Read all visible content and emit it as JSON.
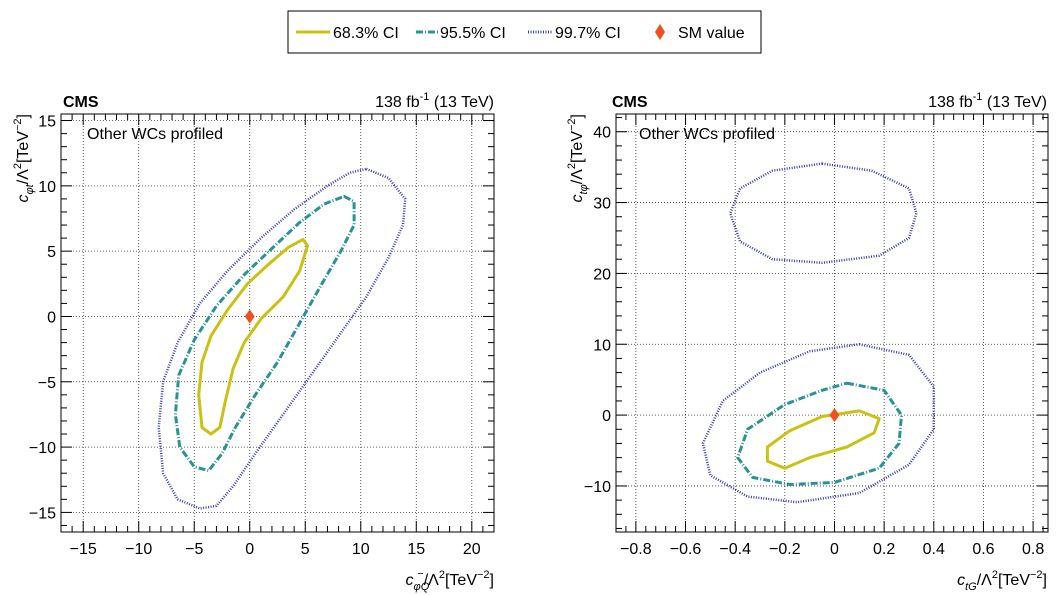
{
  "legend": {
    "entries": [
      {
        "label": "68.3% CI",
        "style": "solid",
        "color": "#c9c215"
      },
      {
        "label": "95.5% CI",
        "style": "dashdot",
        "color": "#2a9295"
      },
      {
        "label": "99.7% CI",
        "style": "dotted",
        "color": "#3a3ab8"
      },
      {
        "label": "SM value",
        "style": "marker-diamond",
        "color": "#f0501e"
      }
    ]
  },
  "chart_data": [
    {
      "type": "contour",
      "experiment": "CMS",
      "lumi_prefix": "138 fb",
      "lumi_exp": "-1",
      "lumi_suffix": " (13 TeV)",
      "annotation": "Other WCs profiled",
      "xlabel": {
        "c": "c",
        "sub": "φQ",
        "sup": "−",
        "rest": "/Λ",
        "rest_sup": "2",
        "unit": "[TeV",
        "unit_sup": "−2",
        "unit_end": "]"
      },
      "ylabel": {
        "c": "c",
        "sub": "φt",
        "rest": "/Λ",
        "rest_sup": "2",
        "unit": "[TeV",
        "unit_sup": "−2",
        "unit_end": "]"
      },
      "xlim": [
        -17,
        22
      ],
      "ylim": [
        -16.5,
        15.5
      ],
      "xticks": [
        -15,
        -10,
        -5,
        0,
        5,
        10,
        15,
        20
      ],
      "yticks": [
        -15,
        -10,
        -5,
        0,
        5,
        10,
        15
      ],
      "grid": true,
      "sm_point": [
        0,
        0
      ],
      "contours": [
        {
          "name": "68.3% CI",
          "points": [
            [
              4.8,
              5.9
            ],
            [
              5.2,
              5.4
            ],
            [
              4.5,
              3.5
            ],
            [
              3,
              1.5
            ],
            [
              1,
              -0.2
            ],
            [
              -0.5,
              -2
            ],
            [
              -1.5,
              -4
            ],
            [
              -2.2,
              -6.5
            ],
            [
              -2.7,
              -8.5
            ],
            [
              -3.5,
              -9
            ],
            [
              -4.3,
              -8.5
            ],
            [
              -4.6,
              -6
            ],
            [
              -4.3,
              -3.5
            ],
            [
              -3.5,
              -1.5
            ],
            [
              -2,
              0.5
            ],
            [
              -0.2,
              2.5
            ],
            [
              1.7,
              4
            ],
            [
              3.5,
              5.3
            ]
          ]
        },
        {
          "name": "95.5% CI",
          "points": [
            [
              8.5,
              9.2
            ],
            [
              9.4,
              8.8
            ],
            [
              9.4,
              7
            ],
            [
              8.2,
              5
            ],
            [
              6.5,
              2.5
            ],
            [
              4.5,
              -0.5
            ],
            [
              2.5,
              -3.5
            ],
            [
              0.5,
              -6
            ],
            [
              -1.3,
              -8.5
            ],
            [
              -2.5,
              -10.5
            ],
            [
              -3.7,
              -11.8
            ],
            [
              -5,
              -11.5
            ],
            [
              -6.3,
              -10
            ],
            [
              -6.7,
              -7.5
            ],
            [
              -6.4,
              -4.5
            ],
            [
              -5,
              -1.8
            ],
            [
              -3,
              0.8
            ],
            [
              -0.5,
              3.2
            ],
            [
              2,
              5.2
            ],
            [
              4.5,
              7.2
            ],
            [
              6.7,
              8.6
            ]
          ]
        },
        {
          "name": "99.7% CI",
          "points": [
            [
              10.5,
              11.3
            ],
            [
              12.5,
              10.6
            ],
            [
              14,
              9
            ],
            [
              13.8,
              7
            ],
            [
              12.5,
              4.5
            ],
            [
              10.5,
              1.5
            ],
            [
              8,
              -1.5
            ],
            [
              5.5,
              -4.5
            ],
            [
              3,
              -7.5
            ],
            [
              0.5,
              -10.5
            ],
            [
              -1.5,
              -13
            ],
            [
              -3,
              -14.5
            ],
            [
              -4.5,
              -14.7
            ],
            [
              -6.5,
              -14
            ],
            [
              -7.8,
              -12
            ],
            [
              -8.2,
              -8.5
            ],
            [
              -7.8,
              -5
            ],
            [
              -6.5,
              -2
            ],
            [
              -4.5,
              1
            ],
            [
              -2,
              3.5
            ],
            [
              1,
              6
            ],
            [
              4,
              8.2
            ],
            [
              7,
              10
            ],
            [
              9,
              11
            ]
          ]
        }
      ]
    },
    {
      "type": "contour",
      "experiment": "CMS",
      "lumi_prefix": "138 fb",
      "lumi_exp": "-1",
      "lumi_suffix": " (13 TeV)",
      "annotation": "Other WCs profiled",
      "xlabel": {
        "c": "c",
        "sub": "tG",
        "sup": "",
        "rest": "/Λ",
        "rest_sup": "2",
        "unit": "[TeV",
        "unit_sup": "−2",
        "unit_end": "]"
      },
      "ylabel": {
        "c": "c",
        "sub": "tφ",
        "rest": "/Λ",
        "rest_sup": "2",
        "unit": "[TeV",
        "unit_sup": "−2",
        "unit_end": "]"
      },
      "xlim": [
        -0.88,
        0.86
      ],
      "ylim": [
        -16.5,
        42.5
      ],
      "xticks": [
        -0.8,
        -0.6,
        -0.4,
        -0.2,
        0,
        0.2,
        0.4,
        0.6,
        0.8
      ],
      "yticks": [
        -10,
        0,
        10,
        20,
        30,
        40
      ],
      "grid": true,
      "sm_point": [
        0,
        0
      ],
      "contours": [
        {
          "name": "68.3% CI",
          "points": [
            [
              -0.05,
              -0.2
            ],
            [
              0.1,
              0.6
            ],
            [
              0.18,
              -0.5
            ],
            [
              0.16,
              -2.5
            ],
            [
              0.05,
              -4.5
            ],
            [
              -0.1,
              -6
            ],
            [
              -0.2,
              -7.5
            ],
            [
              -0.27,
              -6.5
            ],
            [
              -0.27,
              -4.5
            ],
            [
              -0.18,
              -2.2
            ]
          ]
        },
        {
          "name": "95.5% CI",
          "points": [
            [
              0.05,
              4.5
            ],
            [
              0.2,
              3.5
            ],
            [
              0.27,
              0
            ],
            [
              0.26,
              -4
            ],
            [
              0.18,
              -7.5
            ],
            [
              0,
              -9.5
            ],
            [
              -0.18,
              -9.8
            ],
            [
              -0.33,
              -8.8
            ],
            [
              -0.39,
              -6
            ],
            [
              -0.35,
              -2
            ],
            [
              -0.2,
              1.5
            ],
            [
              -0.05,
              3.5
            ]
          ]
        },
        {
          "name": "99.7% CI",
          "points": [
            [
              0.1,
              10
            ],
            [
              0.3,
              8.5
            ],
            [
              0.4,
              4
            ],
            [
              0.4,
              -2
            ],
            [
              0.3,
              -7
            ],
            [
              0.1,
              -11
            ],
            [
              -0.15,
              -12.3
            ],
            [
              -0.35,
              -11.5
            ],
            [
              -0.5,
              -8.5
            ],
            [
              -0.53,
              -4
            ],
            [
              -0.45,
              2
            ],
            [
              -0.3,
              6
            ],
            [
              -0.1,
              9
            ]
          ]
        },
        {
          "name": "99.7% CI",
          "points": [
            [
              -0.05,
              35.5
            ],
            [
              0.15,
              34.5
            ],
            [
              0.3,
              32
            ],
            [
              0.33,
              28.5
            ],
            [
              0.3,
              25
            ],
            [
              0.18,
              22.5
            ],
            [
              -0.05,
              21.5
            ],
            [
              -0.25,
              22
            ],
            [
              -0.38,
              24.5
            ],
            [
              -0.42,
              28.5
            ],
            [
              -0.38,
              32
            ],
            [
              -0.25,
              34.5
            ]
          ]
        }
      ]
    }
  ]
}
